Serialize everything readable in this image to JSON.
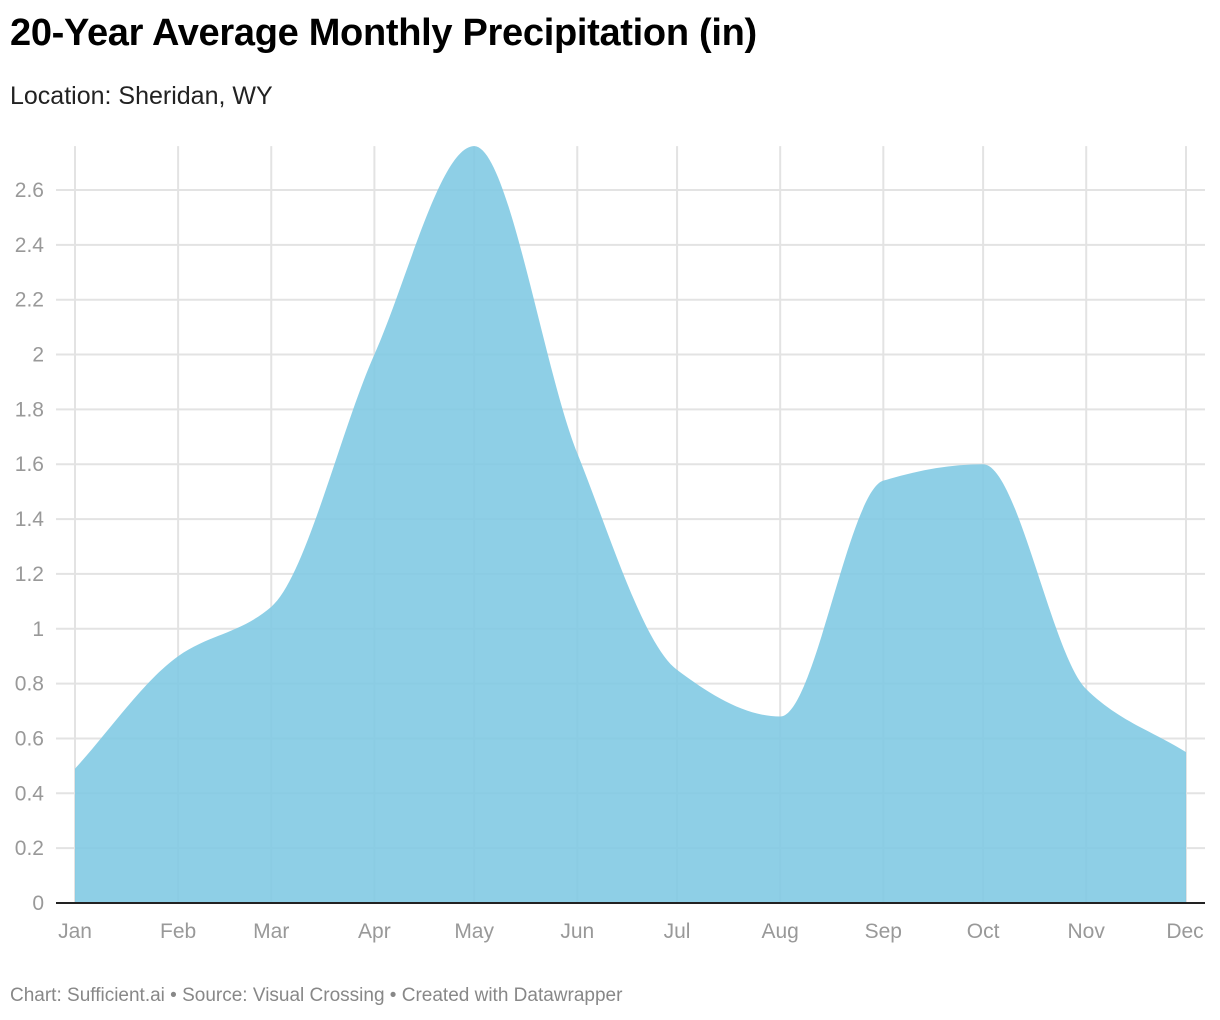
{
  "chart_data": {
    "type": "area",
    "title": "20-Year Average Monthly Precipitation (in)",
    "subtitle": "Location: Sheridan, WY",
    "footer": "Chart: Sufficient.ai • Source: Visual Crossing • Created with Datawrapper",
    "xlabel": "",
    "ylabel": "",
    "x": [
      "2023-01-01",
      "2023-02-01",
      "2023-03-01",
      "2023-04-01",
      "2023-05-01",
      "2023-06-01",
      "2023-07-01",
      "2023-08-01",
      "2023-09-01",
      "2023-10-01",
      "2023-11-01",
      "2023-12-01"
    ],
    "x_tick_labels": [
      "Jan",
      "Feb",
      "Mar",
      "Apr",
      "May",
      "Jun",
      "Jul",
      "Aug",
      "Sep",
      "Oct",
      "Nov",
      "Dec"
    ],
    "values": [
      0.49,
      0.9,
      1.08,
      2.0,
      2.76,
      1.64,
      0.85,
      0.68,
      1.54,
      1.6,
      0.78,
      0.55
    ],
    "ylim": [
      0,
      2.76
    ],
    "y_ticks": [
      0,
      0.2,
      0.4,
      0.6,
      0.8,
      1,
      1.2,
      1.4,
      1.6,
      1.8,
      2,
      2.2,
      2.4,
      2.6
    ],
    "y_tick_labels": [
      "0",
      "0.2",
      "0.4",
      "0.6",
      "0.8",
      "1",
      "1.2",
      "1.4",
      "1.6",
      "1.8",
      "2",
      "2.2",
      "2.4",
      "2.6"
    ],
    "grid": true,
    "curve": "smooth",
    "fill_color": "#7ec8e3"
  }
}
